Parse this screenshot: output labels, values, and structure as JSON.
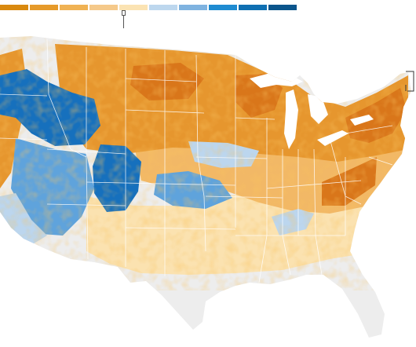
{
  "map": {
    "region": "contiguous-united-states",
    "legend": {
      "swatches": [
        "#d9890f",
        "#e69a2a",
        "#f0b253",
        "#f5c98a",
        "#fbe3b3",
        "#bdd7ee",
        "#7fb3e0",
        "#1f8bd1",
        "#0f6fb2",
        "#0b558c"
      ],
      "marker_label": ""
    },
    "colors": {
      "no_data": "#ededed",
      "state_lines": "#ffffff",
      "deep_orange": "#d9761a",
      "orange": "#e6962e",
      "light_orange": "#f2b866",
      "pale_orange": "#fbe2b0",
      "pale_blue": "#bcd6ee",
      "mid_blue": "#5fa3dc",
      "deep_blue": "#1670bd"
    }
  }
}
